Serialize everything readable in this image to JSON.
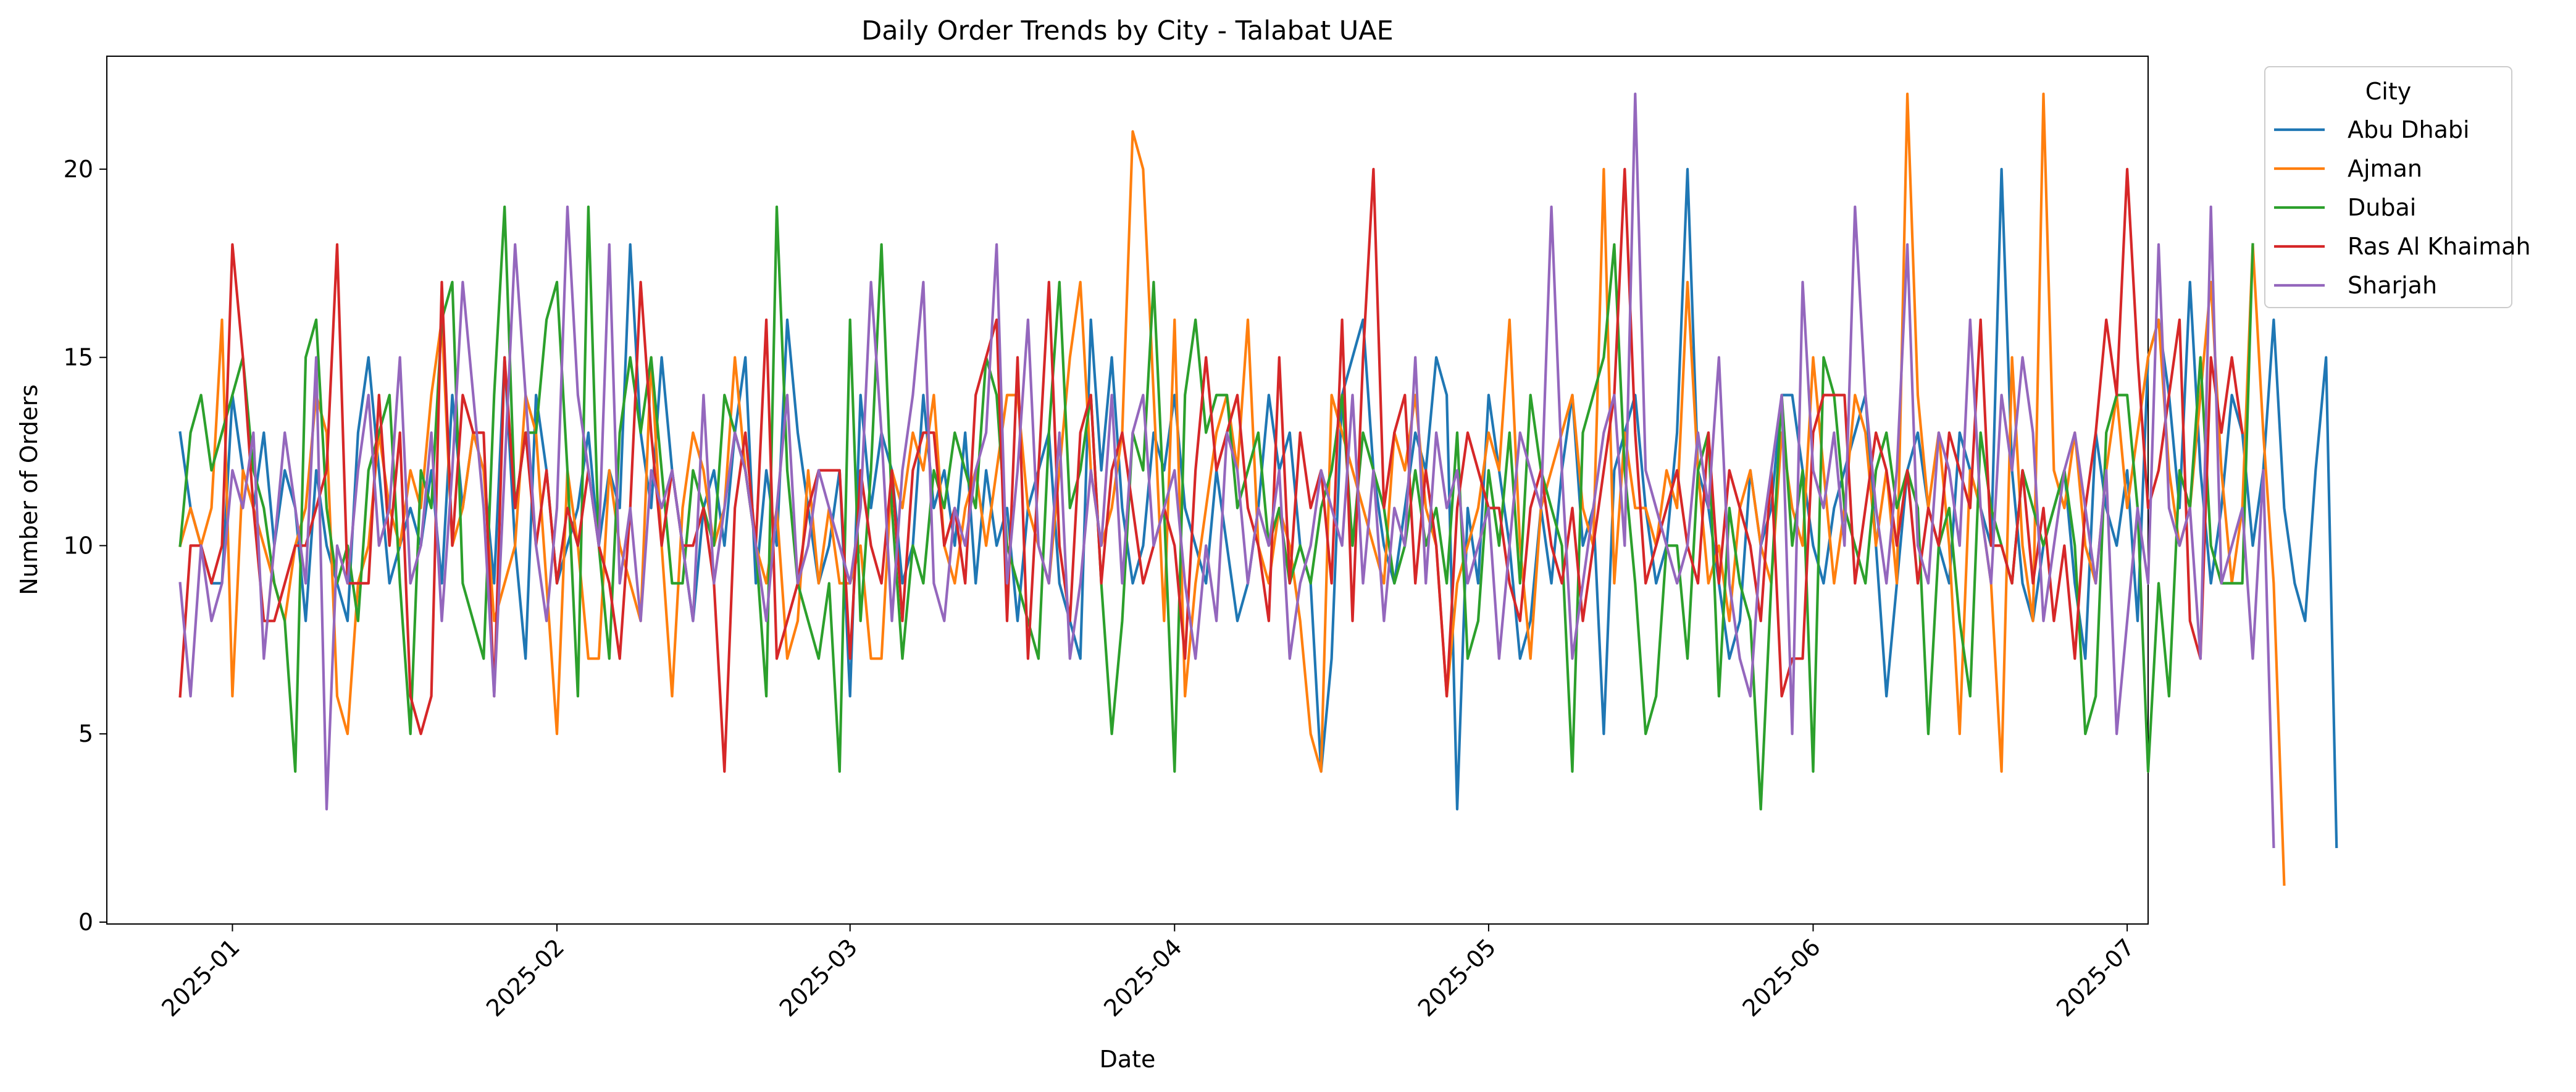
{
  "chart_data": {
    "type": "line",
    "title": "Daily Order Trends by City - Talabat UAE",
    "xlabel": "Date",
    "ylabel": "Number of Orders",
    "x_start": "2024-12-27",
    "x_end": "2025-06-26",
    "xlim": [
      "2024-12-20",
      "2025-07-03"
    ],
    "ylim": [
      -0.05,
      23
    ],
    "x_ticks": [
      "2025-01-01",
      "2025-02-01",
      "2025-03-01",
      "2025-04-01",
      "2025-05-01",
      "2025-06-01",
      "2025-07-01"
    ],
    "x_tick_labels": [
      "2025-01",
      "2025-02",
      "2025-03",
      "2025-04",
      "2025-05",
      "2025-06",
      "2025-07"
    ],
    "y_ticks": [
      0,
      5,
      10,
      15,
      20
    ],
    "y_tick_labels": [
      "0",
      "5",
      "10",
      "15",
      "20"
    ],
    "grid": false,
    "legend": {
      "title": "City",
      "placement": "outside-upper-right"
    },
    "series": [
      {
        "name": "Abu Dhabi",
        "color": "#1f77b4",
        "values": [
          13,
          11,
          10,
          9,
          9,
          14,
          12,
          11,
          13,
          10,
          12,
          11,
          8,
          12,
          10,
          9,
          8,
          13,
          15,
          12,
          9,
          10,
          11,
          10,
          12,
          9,
          14,
          11,
          13,
          12,
          9,
          15,
          10,
          7,
          14,
          12,
          9,
          10,
          11,
          13,
          10,
          12,
          11,
          18,
          13,
          11,
          15,
          12,
          10,
          8,
          11,
          12,
          10,
          13,
          15,
          9,
          12,
          10,
          16,
          13,
          11,
          9,
          10,
          12,
          6,
          14,
          11,
          13,
          12,
          9,
          10,
          14,
          11,
          12,
          10,
          13,
          9,
          12,
          10,
          11,
          8,
          11,
          12,
          13,
          9,
          8,
          7,
          16,
          12,
          15,
          11,
          9,
          10,
          13,
          12,
          14,
          11,
          10,
          9,
          12,
          10,
          8,
          9,
          11,
          14,
          12,
          13,
          10,
          9,
          4,
          7,
          14,
          15,
          16,
          12,
          10,
          9,
          11,
          13,
          12,
          15,
          14,
          3,
          11,
          9,
          14,
          12,
          10,
          7,
          8,
          11,
          9,
          12,
          14,
          10,
          11,
          5,
          12,
          13,
          14,
          11,
          9,
          10,
          13,
          20,
          12,
          11,
          9,
          7,
          8,
          12,
          10,
          11,
          14,
          14,
          12,
          10,
          9,
          11,
          12,
          13,
          14,
          10,
          6,
          9,
          12,
          13,
          11,
          10,
          9,
          13,
          12,
          11,
          10,
          20,
          12,
          9,
          8,
          10,
          11,
          12,
          9,
          7,
          13,
          11,
          10,
          12,
          8,
          15,
          16,
          14,
          11,
          17,
          12,
          9,
          11,
          14,
          13,
          10,
          12,
          16,
          11,
          9,
          8,
          12,
          15,
          2
        ]
      },
      {
        "name": "Ajman",
        "color": "#ff7f0e",
        "values": [
          10,
          11,
          10,
          11,
          16,
          6,
          12,
          11,
          10,
          9,
          8,
          10,
          11,
          14,
          13,
          6,
          5,
          9,
          10,
          13,
          11,
          10,
          12,
          11,
          14,
          16,
          10,
          11,
          13,
          12,
          8,
          9,
          10,
          14,
          13,
          9,
          5,
          12,
          10,
          7,
          7,
          12,
          10,
          9,
          8,
          15,
          10,
          6,
          11,
          13,
          12,
          10,
          11,
          15,
          12,
          10,
          9,
          11,
          7,
          8,
          12,
          9,
          11,
          9,
          9,
          10,
          7,
          7,
          12,
          11,
          13,
          12,
          14,
          10,
          9,
          11,
          12,
          10,
          12,
          14,
          14,
          11,
          10,
          9,
          12,
          15,
          17,
          12,
          10,
          11,
          13,
          21,
          20,
          14,
          8,
          16,
          6,
          9,
          11,
          13,
          14,
          12,
          16,
          10,
          9,
          11,
          10,
          8,
          5,
          4,
          14,
          13,
          12,
          11,
          10,
          9,
          13,
          12,
          14,
          11,
          10,
          6,
          9,
          10,
          11,
          13,
          12,
          16,
          10,
          7,
          11,
          12,
          13,
          14,
          11,
          10,
          20,
          9,
          13,
          11,
          11,
          10,
          12,
          11,
          17,
          12,
          9,
          10,
          8,
          11,
          12,
          10,
          9,
          13,
          11,
          10,
          15,
          12,
          9,
          11,
          14,
          13,
          10,
          12,
          9,
          22,
          14,
          11,
          13,
          10,
          5,
          12,
          11,
          9,
          4,
          15,
          10,
          8,
          22,
          12,
          11,
          13,
          10,
          9,
          12,
          14,
          11,
          13,
          15,
          16,
          12,
          10,
          11,
          14,
          17,
          12,
          9,
          11,
          18,
          13,
          9,
          1
        ]
      },
      {
        "name": "Dubai",
        "color": "#2ca02c",
        "values": [
          10,
          13,
          14,
          12,
          13,
          14,
          15,
          12,
          11,
          9,
          8,
          4,
          15,
          16,
          11,
          9,
          10,
          8,
          12,
          13,
          14,
          9,
          5,
          12,
          11,
          16,
          17,
          9,
          8,
          7,
          14,
          19,
          11,
          13,
          13,
          16,
          17,
          12,
          6,
          19,
          10,
          7,
          13,
          15,
          13,
          15,
          12,
          9,
          9,
          12,
          11,
          10,
          14,
          13,
          12,
          10,
          6,
          19,
          12,
          9,
          8,
          7,
          9,
          4,
          16,
          8,
          12,
          18,
          11,
          7,
          10,
          9,
          12,
          11,
          13,
          12,
          11,
          15,
          14,
          10,
          9,
          8,
          7,
          13,
          17,
          11,
          12,
          14,
          9,
          5,
          8,
          13,
          12,
          17,
          11,
          4,
          14,
          16,
          13,
          14,
          14,
          11,
          12,
          13,
          10,
          11,
          9,
          10,
          9,
          11,
          12,
          14,
          10,
          13,
          12,
          11,
          9,
          10,
          12,
          10,
          11,
          9,
          13,
          7,
          8,
          12,
          10,
          13,
          9,
          14,
          12,
          11,
          10,
          4,
          13,
          14,
          15,
          18,
          12,
          9,
          5,
          6,
          10,
          10,
          7,
          12,
          13,
          6,
          11,
          9,
          8,
          3,
          9,
          14,
          10,
          12,
          4,
          15,
          14,
          11,
          10,
          9,
          12,
          13,
          11,
          12,
          11,
          5,
          10,
          11,
          8,
          6,
          13,
          11,
          10,
          9,
          12,
          11,
          10,
          11,
          12,
          10,
          5,
          6,
          13,
          14,
          14,
          11,
          4,
          9,
          6,
          12,
          11,
          15,
          10,
          9,
          9,
          9,
          18
        ]
      },
      {
        "name": "Ras Al Khaimah",
        "color": "#d62728",
        "values": [
          6,
          10,
          10,
          9,
          10,
          18,
          15,
          11,
          8,
          8,
          9,
          10,
          10,
          11,
          12,
          18,
          9,
          9,
          9,
          14,
          10,
          13,
          6,
          5,
          6,
          17,
          10,
          14,
          13,
          13,
          6,
          15,
          11,
          13,
          10,
          12,
          9,
          11,
          10,
          12,
          10,
          9,
          7,
          11,
          17,
          13,
          10,
          12,
          10,
          10,
          11,
          9,
          4,
          11,
          13,
          10,
          16,
          7,
          8,
          9,
          11,
          12,
          12,
          12,
          7,
          12,
          10,
          9,
          12,
          8,
          12,
          13,
          13,
          10,
          11,
          9,
          14,
          15,
          16,
          8,
          15,
          7,
          12,
          17,
          10,
          8,
          13,
          14,
          9,
          12,
          13,
          11,
          9,
          10,
          11,
          10,
          7,
          12,
          15,
          12,
          13,
          14,
          11,
          10,
          8,
          15,
          9,
          13,
          11,
          12,
          9,
          16,
          8,
          15,
          20,
          11,
          13,
          14,
          9,
          12,
          10,
          6,
          11,
          13,
          12,
          11,
          11,
          9,
          8,
          11,
          12,
          10,
          9,
          11,
          8,
          10,
          12,
          14,
          20,
          13,
          9,
          10,
          11,
          12,
          10,
          9,
          13,
          9,
          12,
          11,
          10,
          8,
          12,
          6,
          7,
          7,
          13,
          14,
          14,
          14,
          9,
          11,
          13,
          12,
          10,
          12,
          9,
          11,
          10,
          13,
          12,
          11,
          16,
          10,
          10,
          9,
          12,
          9,
          11,
          8,
          10,
          7,
          11,
          13,
          16,
          14,
          20,
          15,
          11,
          12,
          14,
          16,
          8,
          7,
          15,
          13,
          15,
          13
        ]
      },
      {
        "name": "Sharjah",
        "color": "#9467bd",
        "values": [
          9,
          6,
          10,
          8,
          9,
          12,
          11,
          13,
          7,
          10,
          13,
          11,
          9,
          15,
          3,
          10,
          9,
          12,
          14,
          10,
          11,
          15,
          9,
          10,
          13,
          8,
          12,
          17,
          14,
          11,
          6,
          12,
          18,
          14,
          10,
          8,
          11,
          19,
          14,
          12,
          10,
          18,
          9,
          11,
          8,
          12,
          11,
          12,
          10,
          8,
          14,
          9,
          11,
          13,
          12,
          10,
          8,
          11,
          14,
          9,
          10,
          12,
          11,
          10,
          9,
          11,
          17,
          13,
          8,
          12,
          14,
          17,
          9,
          8,
          11,
          10,
          12,
          13,
          18,
          9,
          12,
          16,
          10,
          9,
          13,
          7,
          9,
          12,
          10,
          14,
          9,
          13,
          14,
          10,
          11,
          12,
          9,
          7,
          10,
          8,
          13,
          12,
          9,
          11,
          10,
          12,
          7,
          9,
          10,
          12,
          11,
          10,
          14,
          9,
          12,
          8,
          11,
          10,
          15,
          9,
          13,
          11,
          12,
          9,
          10,
          11,
          7,
          10,
          13,
          12,
          11,
          19,
          12,
          7,
          9,
          11,
          13,
          14,
          10,
          22,
          12,
          11,
          10,
          9,
          10,
          13,
          11,
          15,
          9,
          7,
          6,
          10,
          12,
          14,
          5,
          17,
          12,
          11,
          13,
          10,
          19,
          14,
          11,
          9,
          12,
          18,
          10,
          9,
          13,
          12,
          10,
          16,
          11,
          9,
          14,
          12,
          15,
          13,
          8,
          10,
          12,
          13,
          11,
          9,
          12,
          5,
          8,
          11,
          9,
          18,
          11,
          10,
          11,
          7,
          19,
          9,
          10,
          11,
          7,
          12,
          2
        ]
      }
    ]
  }
}
